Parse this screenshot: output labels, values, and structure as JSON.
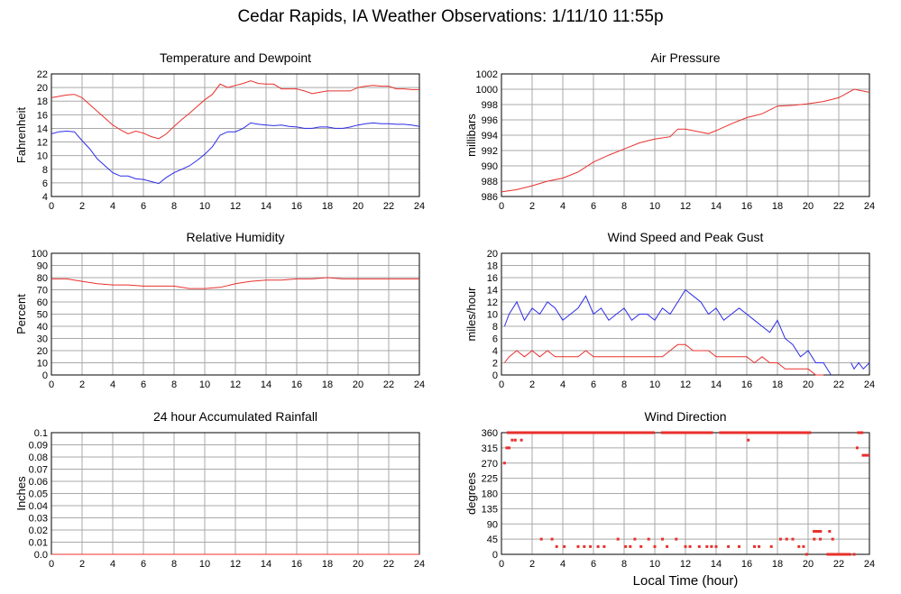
{
  "title": "Cedar Rapids, IA Weather Observations: 1/11/10 11:55p",
  "xlabel": "Local Time (hour)",
  "colors": {
    "red": "#e8302c",
    "blue": "#2b2be8",
    "grid": "#a8a8a8"
  },
  "chart_data": [
    {
      "type": "line",
      "title": "Temperature and Dewpoint",
      "ylabel": "Fahrenheit",
      "xlim": [
        0,
        24
      ],
      "ylim": [
        4,
        22
      ],
      "xticks": [
        0,
        2,
        4,
        6,
        8,
        10,
        12,
        14,
        16,
        18,
        20,
        22,
        24
      ],
      "yticks": [
        4,
        6,
        8,
        10,
        12,
        14,
        16,
        18,
        20,
        22
      ],
      "grid": true,
      "series": [
        {
          "color": "red",
          "x": [
            0,
            0.5,
            1,
            1.5,
            2,
            2.5,
            3,
            3.5,
            4,
            4.5,
            5,
            5.5,
            6,
            6.5,
            7,
            7.5,
            8,
            8.5,
            9,
            9.5,
            10,
            10.5,
            11,
            11.5,
            12,
            12.5,
            13,
            13.5,
            14,
            14.5,
            15,
            15.5,
            16,
            16.5,
            17,
            17.5,
            18,
            18.5,
            19,
            19.5,
            20,
            20.5,
            21,
            21.5,
            22,
            22.5,
            23,
            23.5,
            24
          ],
          "y": [
            18.5,
            18.7,
            18.9,
            19.0,
            18.5,
            17.5,
            16.5,
            15.5,
            14.5,
            13.8,
            13.2,
            13.6,
            13.3,
            12.8,
            12.5,
            13.2,
            14.3,
            15.3,
            16.2,
            17.2,
            18.2,
            19.0,
            20.5,
            20.0,
            20.3,
            20.6,
            21.0,
            20.6,
            20.5,
            20.5,
            19.8,
            19.8,
            19.8,
            19.5,
            19.1,
            19.3,
            19.5,
            19.5,
            19.5,
            19.5,
            20.0,
            20.2,
            20.3,
            20.2,
            20.2,
            19.8,
            19.8,
            19.7,
            19.7
          ]
        },
        {
          "color": "blue",
          "x": [
            0,
            0.5,
            1,
            1.5,
            2,
            2.5,
            3,
            3.5,
            4,
            4.5,
            5,
            5.5,
            6,
            6.5,
            7,
            7.5,
            8,
            8.5,
            9,
            9.5,
            10,
            10.5,
            11,
            11.5,
            12,
            12.5,
            13,
            13.5,
            14,
            14.5,
            15,
            15.5,
            16,
            16.5,
            17,
            17.5,
            18,
            18.5,
            19,
            19.5,
            20,
            20.5,
            21,
            21.5,
            22,
            22.5,
            23,
            23.5,
            24
          ],
          "y": [
            13.2,
            13.5,
            13.6,
            13.5,
            12.2,
            11.0,
            9.5,
            8.5,
            7.5,
            7.0,
            7.0,
            6.6,
            6.5,
            6.2,
            5.9,
            6.8,
            7.5,
            8.0,
            8.5,
            9.3,
            10.2,
            11.3,
            13.0,
            13.5,
            13.5,
            14.0,
            14.8,
            14.6,
            14.5,
            14.4,
            14.5,
            14.3,
            14.2,
            14.0,
            14.0,
            14.2,
            14.2,
            14.0,
            14.0,
            14.2,
            14.5,
            14.7,
            14.8,
            14.7,
            14.7,
            14.6,
            14.6,
            14.5,
            14.3
          ]
        }
      ]
    },
    {
      "type": "line",
      "title": "Air Pressure",
      "ylabel": "millibars",
      "xlim": [
        0,
        24
      ],
      "ylim": [
        986,
        1002
      ],
      "xticks": [
        0,
        2,
        4,
        6,
        8,
        10,
        12,
        14,
        16,
        18,
        20,
        22,
        24
      ],
      "yticks": [
        986,
        988,
        990,
        992,
        994,
        996,
        998,
        1000,
        1002
      ],
      "grid": true,
      "series": [
        {
          "color": "red",
          "x": [
            0,
            1,
            2,
            3,
            4,
            5,
            6,
            7,
            8,
            9,
            10,
            11,
            11.5,
            12,
            13,
            13.5,
            14,
            15,
            16,
            17,
            18,
            19,
            20,
            21,
            22,
            23,
            24
          ],
          "y": [
            986.6,
            986.9,
            987.4,
            988.0,
            988.4,
            989.2,
            990.5,
            991.4,
            992.2,
            993.0,
            993.5,
            993.8,
            994.8,
            994.8,
            994.4,
            994.2,
            994.6,
            995.5,
            996.3,
            996.8,
            997.8,
            997.9,
            998.1,
            998.4,
            998.9,
            1000.0,
            999.6
          ]
        }
      ]
    },
    {
      "type": "line",
      "title": "Relative Humidity",
      "ylabel": "Percent",
      "xlim": [
        0,
        24
      ],
      "ylim": [
        0,
        100
      ],
      "xticks": [
        0,
        2,
        4,
        6,
        8,
        10,
        12,
        14,
        16,
        18,
        20,
        22,
        24
      ],
      "yticks": [
        0,
        10,
        20,
        30,
        40,
        50,
        60,
        70,
        80,
        90,
        100
      ],
      "grid": true,
      "series": [
        {
          "color": "red",
          "x": [
            0,
            1,
            2,
            3,
            4,
            5,
            6,
            7,
            8,
            9,
            10,
            11,
            12,
            13,
            14,
            15,
            16,
            17,
            18,
            19,
            20,
            21,
            22,
            23,
            24
          ],
          "y": [
            79,
            79,
            77,
            75,
            74,
            74,
            73,
            73,
            73,
            71,
            71,
            72,
            75,
            77,
            78,
            78,
            79,
            79,
            80,
            79,
            79,
            79,
            79,
            79,
            79
          ]
        }
      ]
    },
    {
      "type": "line",
      "title": "Wind Speed and Peak Gust",
      "ylabel": "miles/hour",
      "xlim": [
        0,
        24
      ],
      "ylim": [
        0,
        20
      ],
      "xticks": [
        0,
        2,
        4,
        6,
        8,
        10,
        12,
        14,
        16,
        18,
        20,
        22,
        24
      ],
      "yticks": [
        0,
        2,
        4,
        6,
        8,
        10,
        12,
        14,
        16,
        18,
        20
      ],
      "grid": true,
      "series": [
        {
          "color": "blue",
          "x": [
            0.2,
            0.5,
            1,
            1.5,
            2,
            2.5,
            3,
            3.5,
            4,
            4.5,
            5,
            5.5,
            6,
            6.5,
            7,
            7.5,
            8,
            8.5,
            9,
            9.5,
            10,
            10.5,
            11,
            11.5,
            12,
            12.5,
            13,
            13.5,
            14,
            14.5,
            15,
            15.5,
            16,
            16.5,
            17,
            17.5,
            18,
            18.5,
            19,
            19.5,
            20,
            20.5,
            21,
            21.5
          ],
          "y": [
            8,
            10,
            12,
            9,
            11,
            10,
            12,
            11,
            9,
            10,
            11,
            13,
            10,
            11,
            9,
            10,
            11,
            9,
            10,
            10,
            9,
            11,
            10,
            12,
            14,
            13,
            12,
            10,
            11,
            9,
            10,
            11,
            10,
            9,
            8,
            7,
            9,
            6,
            5,
            3,
            4,
            2,
            2,
            0
          ]
        },
        {
          "color": "blue",
          "x": [
            22.8,
            23,
            23.3,
            23.6,
            24
          ],
          "y": [
            2,
            1,
            2,
            1,
            2
          ]
        },
        {
          "color": "red",
          "x": [
            0.2,
            0.5,
            1,
            1.5,
            2,
            2.5,
            3,
            3.5,
            4,
            4.5,
            5,
            5.5,
            6,
            6.5,
            7,
            7.5,
            8,
            8.5,
            9,
            9.5,
            10,
            10.5,
            11,
            11.5,
            12,
            12.5,
            13,
            13.5,
            14,
            14.5,
            15,
            15.5,
            16,
            16.5,
            17,
            17.5,
            18,
            18.5,
            19,
            19.5,
            20,
            20.5,
            21
          ],
          "y": [
            2,
            3,
            4,
            3,
            4,
            3,
            4,
            3,
            3,
            3,
            3,
            4,
            3,
            3,
            3,
            3,
            3,
            3,
            3,
            3,
            3,
            3,
            4,
            5,
            5,
            4,
            4,
            4,
            3,
            3,
            3,
            3,
            3,
            2,
            3,
            2,
            2,
            1,
            1,
            1,
            1,
            0,
            0
          ]
        }
      ]
    },
    {
      "type": "line",
      "title": "24 hour Accumulated Rainfall",
      "ylabel": "Inches",
      "xlim": [
        0,
        24
      ],
      "ylim": [
        0,
        0.1
      ],
      "xticks": [
        0,
        2,
        4,
        6,
        8,
        10,
        12,
        14,
        16,
        18,
        20,
        22,
        24
      ],
      "yticks": [
        0.0,
        0.01,
        0.02,
        0.03,
        0.04,
        0.05,
        0.06,
        0.07,
        0.08,
        0.09,
        0.1
      ],
      "ytick_labels": [
        "0.0",
        "0.01",
        "0.02",
        "0.03",
        "0.04",
        "0.05",
        "0.06",
        "0.07",
        "0.08",
        "0.09",
        "0.1"
      ],
      "grid": true,
      "series": [
        {
          "color": "red",
          "x": [
            0,
            24
          ],
          "y": [
            0,
            0
          ]
        }
      ]
    },
    {
      "type": "scatter",
      "title": "Wind Direction",
      "ylabel": "degrees",
      "xlim": [
        0,
        24
      ],
      "ylim": [
        0,
        360
      ],
      "xticks": [
        0,
        2,
        4,
        6,
        8,
        10,
        12,
        14,
        16,
        18,
        20,
        22,
        24
      ],
      "yticks": [
        0,
        45,
        90,
        135,
        180,
        225,
        270,
        315,
        360
      ],
      "grid": true,
      "segments": [
        {
          "x0": 0.35,
          "x1": 10.0,
          "y": 360
        },
        {
          "x0": 10.4,
          "x1": 12.0,
          "y": 360
        },
        {
          "x0": 12.0,
          "x1": 13.8,
          "y": 360
        },
        {
          "x0": 14.2,
          "x1": 18.0,
          "y": 360
        },
        {
          "x0": 18.0,
          "x1": 20.2,
          "y": 360
        },
        {
          "x0": 20.3,
          "x1": 20.9,
          "y": 68
        },
        {
          "x0": 21.2,
          "x1": 22.8,
          "y": 0
        },
        {
          "x0": 23.2,
          "x1": 23.6,
          "y": 360
        },
        {
          "x0": 23.5,
          "x1": 24.0,
          "y": 293
        }
      ],
      "x": [
        0.2,
        0.35,
        0.5,
        0.7,
        0.9,
        1.3,
        2.6,
        3.3,
        3.6,
        4.1,
        4.4,
        5.0,
        5.4,
        5.8,
        6.3,
        6.7,
        7.6,
        8.1,
        8.4,
        8.7,
        9.1,
        9.6,
        10.0,
        10.5,
        10.8,
        11.4,
        12.0,
        12.3,
        12.9,
        13.4,
        13.7,
        14.0,
        14.8,
        15.5,
        16.1,
        16.5,
        16.8,
        17.6,
        18.2,
        18.6,
        19.0,
        19.4,
        19.7,
        19.9,
        20.4,
        20.8,
        21.4,
        21.6,
        21.9,
        23.0,
        23.2
      ],
      "y": [
        270,
        315,
        315,
        338,
        338,
        338,
        45,
        45,
        23,
        23,
        360,
        23,
        23,
        23,
        23,
        23,
        45,
        23,
        23,
        45,
        23,
        45,
        23,
        45,
        23,
        45,
        23,
        23,
        23,
        23,
        23,
        23,
        23,
        23,
        338,
        23,
        23,
        23,
        45,
        45,
        45,
        23,
        23,
        0,
        45,
        45,
        68,
        45,
        0,
        0,
        315
      ]
    }
  ]
}
